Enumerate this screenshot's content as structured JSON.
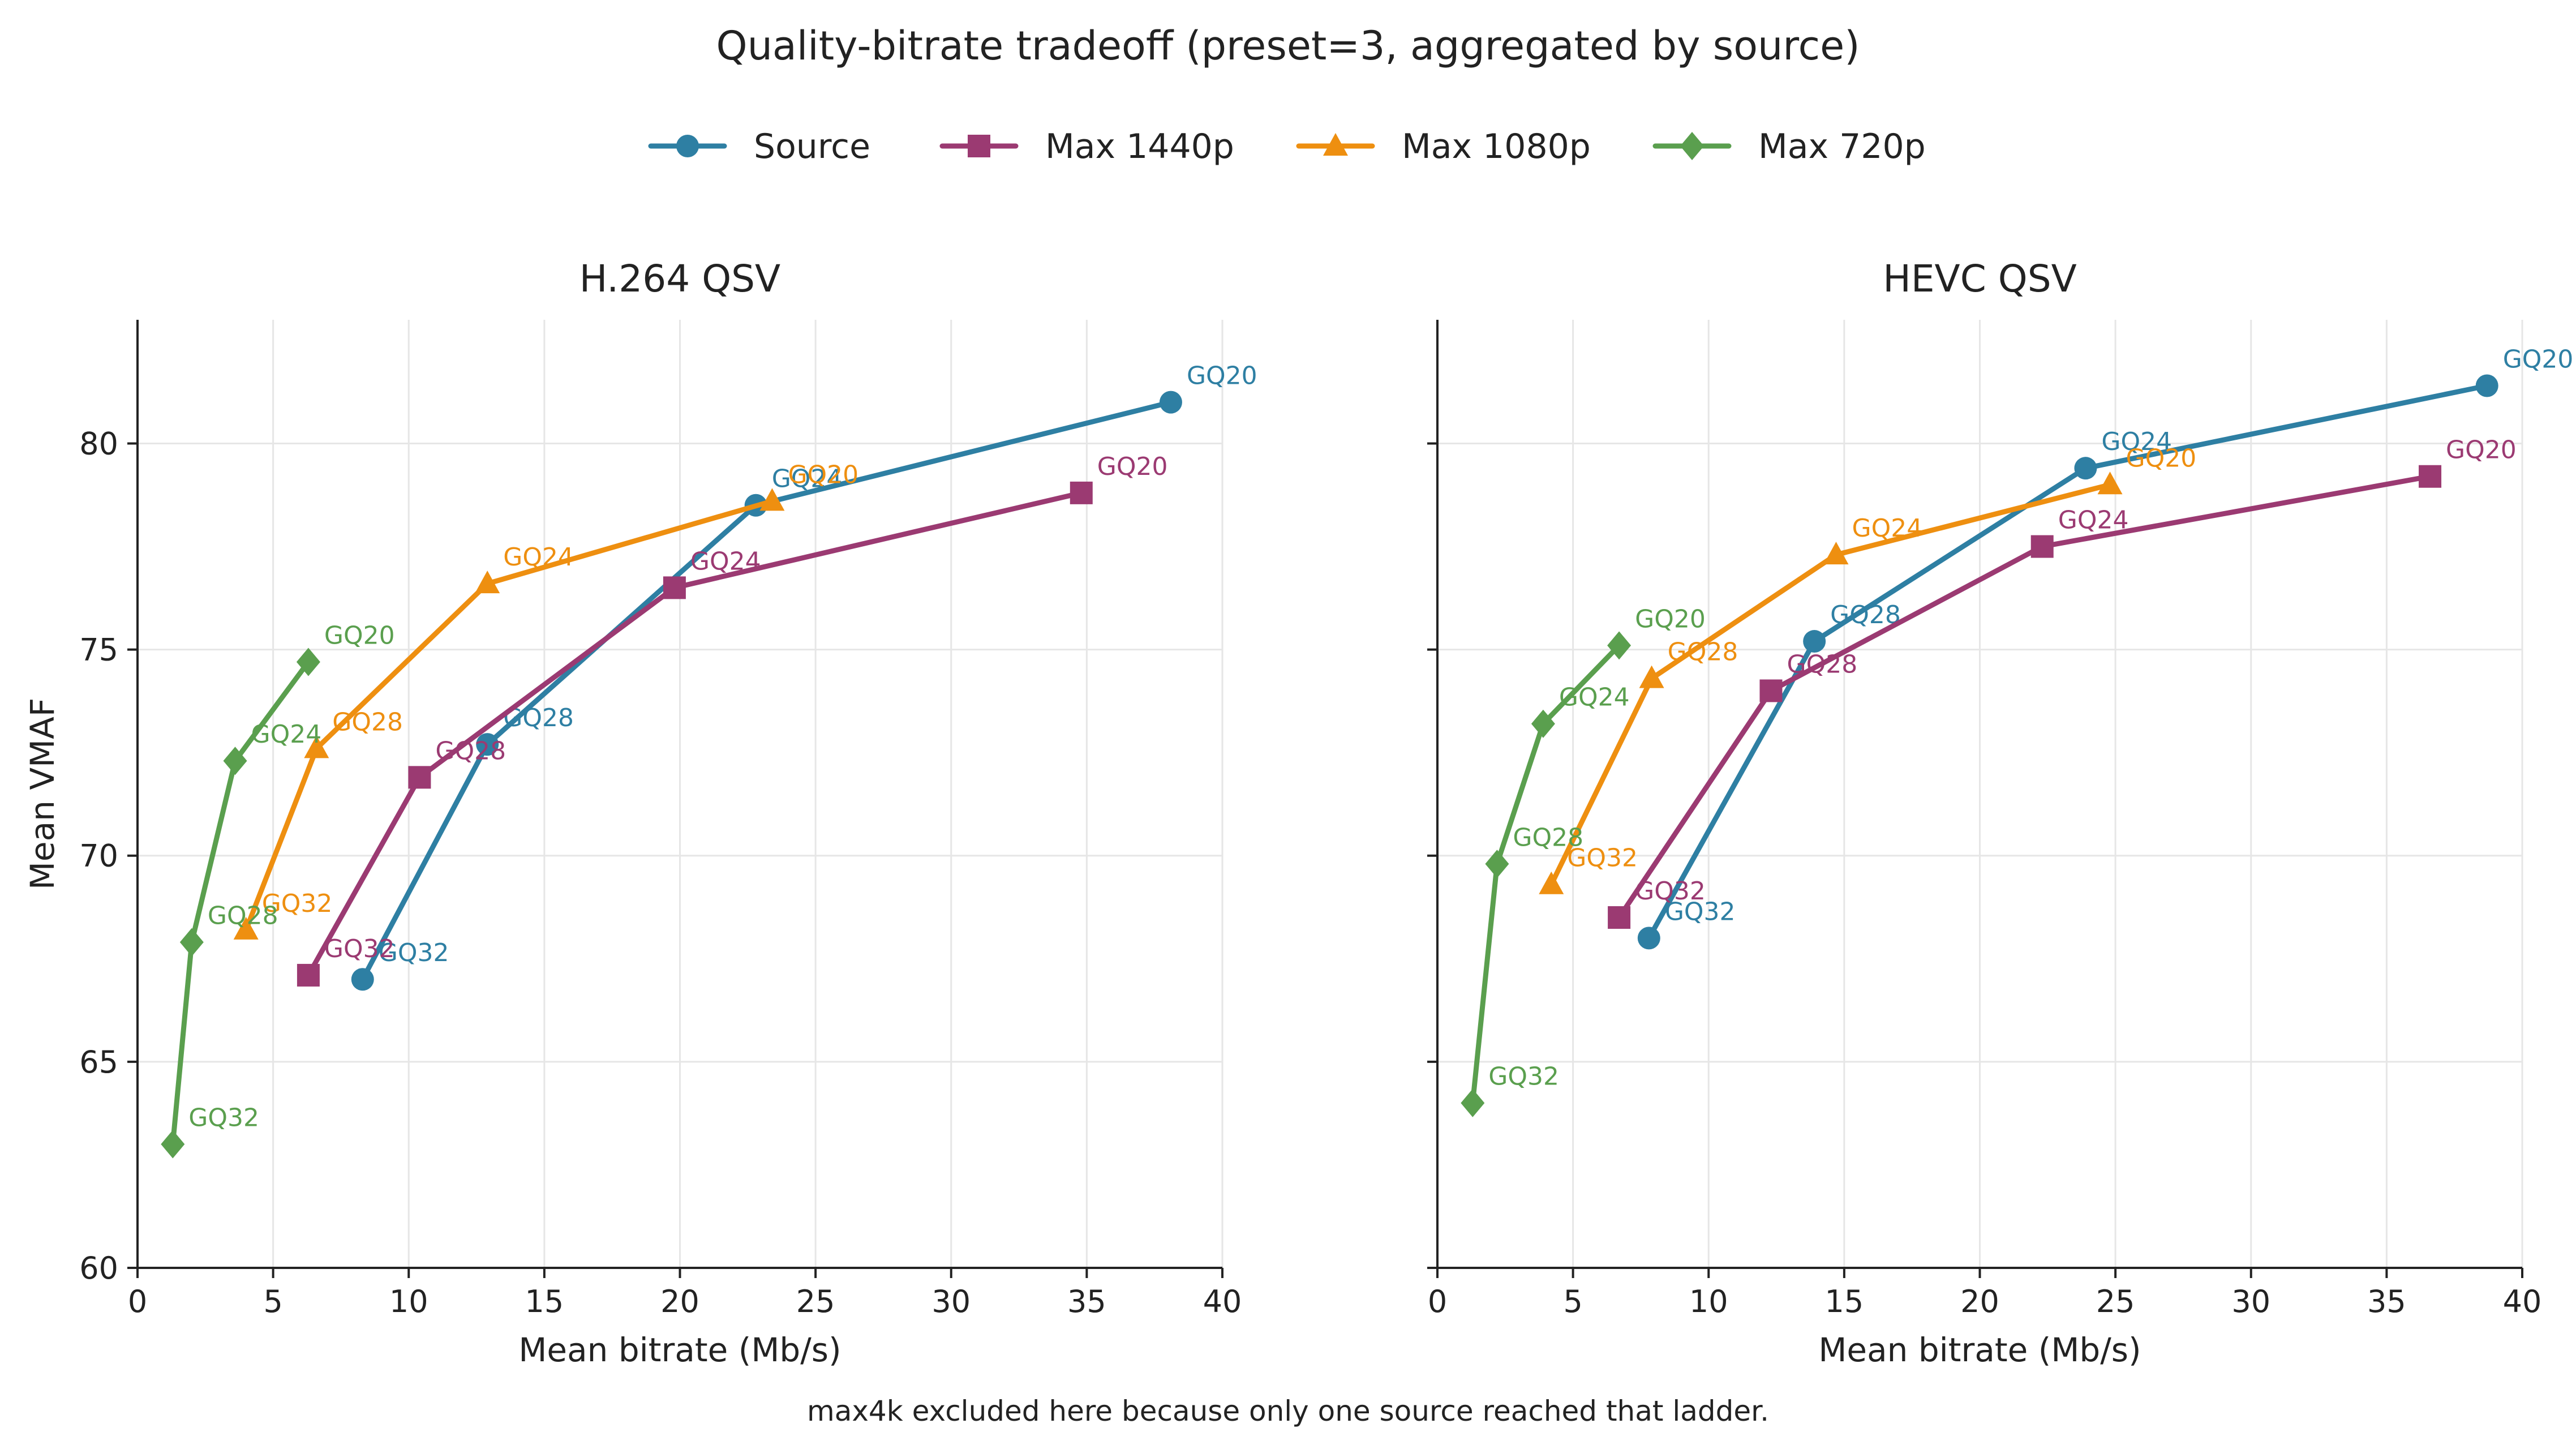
{
  "title": "Quality-bitrate tradeoff (preset=3, aggregated by source)",
  "note": "max4k excluded here because only one source reached that ladder.",
  "colors": {
    "Source": "#2E7FA3",
    "Max 1440p": "#9B3A72",
    "Max 1080p": "#EE8F10",
    "Max 720p": "#5A9F4E"
  },
  "markers": {
    "Source": "circle",
    "Max 1440p": "square",
    "Max 1080p": "triangle",
    "Max 720p": "diamond"
  },
  "legend": {
    "placement": "top-center",
    "entries": [
      "Source",
      "Max 1440p",
      "Max 1080p",
      "Max 720p"
    ]
  },
  "chart_data": [
    {
      "type": "line",
      "title": "H.264 QSV",
      "xlabel": "Mean bitrate (Mb/s)",
      "ylabel": "Mean VMAF",
      "xlim": [
        0,
        40
      ],
      "ylim": [
        60,
        83
      ],
      "xticks": [
        0,
        5,
        10,
        15,
        20,
        25,
        30,
        35,
        40
      ],
      "yticks": [
        60,
        65,
        70,
        75,
        80
      ],
      "grid": true,
      "series": [
        {
          "name": "Source",
          "points": [
            {
              "x": 8.3,
              "y": 67.0,
              "label": "GQ32"
            },
            {
              "x": 12.9,
              "y": 72.7,
              "label": "GQ28"
            },
            {
              "x": 22.8,
              "y": 78.5,
              "label": "GQ24"
            },
            {
              "x": 38.1,
              "y": 81.0,
              "label": "GQ20"
            }
          ]
        },
        {
          "name": "Max 1440p",
          "points": [
            {
              "x": 6.3,
              "y": 67.1,
              "label": "GQ32"
            },
            {
              "x": 10.4,
              "y": 71.9,
              "label": "GQ28"
            },
            {
              "x": 19.8,
              "y": 76.5,
              "label": "GQ24"
            },
            {
              "x": 34.8,
              "y": 78.8,
              "label": "GQ20"
            }
          ]
        },
        {
          "name": "Max 1080p",
          "points": [
            {
              "x": 4.0,
              "y": 68.2,
              "label": "GQ32"
            },
            {
              "x": 6.6,
              "y": 72.6,
              "label": "GQ28"
            },
            {
              "x": 12.9,
              "y": 76.6,
              "label": "GQ24"
            },
            {
              "x": 23.4,
              "y": 78.6,
              "label": "GQ20"
            }
          ]
        },
        {
          "name": "Max 720p",
          "points": [
            {
              "x": 1.3,
              "y": 63.0,
              "label": "GQ32"
            },
            {
              "x": 2.0,
              "y": 67.9,
              "label": "GQ28"
            },
            {
              "x": 3.6,
              "y": 72.3,
              "label": "GQ24"
            },
            {
              "x": 6.3,
              "y": 74.7,
              "label": "GQ20"
            }
          ]
        }
      ]
    },
    {
      "type": "line",
      "title": "HEVC QSV",
      "xlabel": "Mean bitrate (Mb/s)",
      "ylabel": "",
      "xlim": [
        0,
        40
      ],
      "ylim": [
        60,
        83
      ],
      "xticks": [
        0,
        5,
        10,
        15,
        20,
        25,
        30,
        35,
        40
      ],
      "yticks": [
        60,
        65,
        70,
        75,
        80
      ],
      "grid": true,
      "series": [
        {
          "name": "Source",
          "points": [
            {
              "x": 7.8,
              "y": 68.0,
              "label": "GQ32"
            },
            {
              "x": 13.9,
              "y": 75.2,
              "label": "GQ28"
            },
            {
              "x": 23.9,
              "y": 79.4,
              "label": "GQ24"
            },
            {
              "x": 38.7,
              "y": 81.4,
              "label": "GQ20"
            }
          ]
        },
        {
          "name": "Max 1440p",
          "points": [
            {
              "x": 6.7,
              "y": 68.5,
              "label": "GQ32"
            },
            {
              "x": 12.3,
              "y": 74.0,
              "label": "GQ28"
            },
            {
              "x": 22.3,
              "y": 77.5,
              "label": "GQ24"
            },
            {
              "x": 36.6,
              "y": 79.2,
              "label": "GQ20"
            }
          ]
        },
        {
          "name": "Max 1080p",
          "points": [
            {
              "x": 4.2,
              "y": 69.3,
              "label": "GQ32"
            },
            {
              "x": 7.9,
              "y": 74.3,
              "label": "GQ28"
            },
            {
              "x": 14.7,
              "y": 77.3,
              "label": "GQ24"
            },
            {
              "x": 24.8,
              "y": 79.0,
              "label": "GQ20"
            }
          ]
        },
        {
          "name": "Max 720p",
          "points": [
            {
              "x": 1.3,
              "y": 64.0,
              "label": "GQ32"
            },
            {
              "x": 2.2,
              "y": 69.8,
              "label": "GQ28"
            },
            {
              "x": 3.9,
              "y": 73.2,
              "label": "GQ24"
            },
            {
              "x": 6.7,
              "y": 75.1,
              "label": "GQ20"
            }
          ]
        }
      ]
    }
  ]
}
